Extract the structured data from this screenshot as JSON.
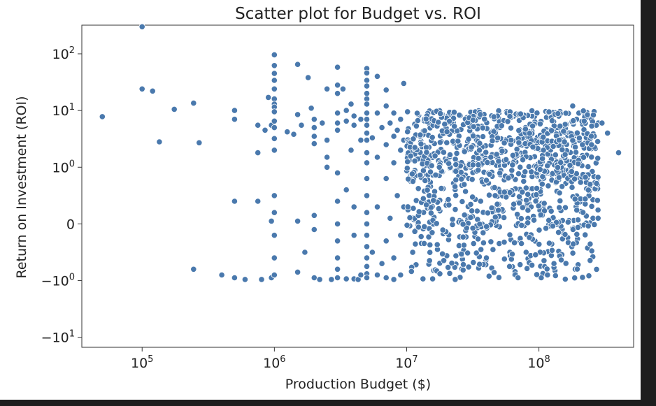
{
  "chart_data": {
    "type": "scatter",
    "title": "Scatter plot for Budget vs. ROI",
    "xlabel": "Production Budget ($)",
    "ylabel": "Return on Investment (ROI)",
    "x_scale": "log",
    "y_scale": "symlog",
    "xlim": [
      35000,
      520000000
    ],
    "ylim": [
      -15,
      320
    ],
    "x_ticks": [
      {
        "value": 100000,
        "base": "10",
        "exp": "5"
      },
      {
        "value": 1000000,
        "base": "10",
        "exp": "6"
      },
      {
        "value": 10000000,
        "base": "10",
        "exp": "7"
      },
      {
        "value": 100000000,
        "base": "10",
        "exp": "8"
      }
    ],
    "y_ticks": [
      {
        "value": 100,
        "base": "10",
        "exp": "2"
      },
      {
        "value": 10,
        "base": "10",
        "exp": "1"
      },
      {
        "value": 1,
        "base": "10",
        "exp": "0"
      },
      {
        "value": 0,
        "base": "0",
        "exp": ""
      },
      {
        "value": -1,
        "base": "−10",
        "exp": "0"
      },
      {
        "value": -10,
        "base": "−10",
        "exp": "1"
      }
    ],
    "grid": false,
    "legend": "none",
    "marker_color": "#4a79ad",
    "series": [
      {
        "points": [
          [
            50000,
            7.8
          ],
          [
            100000,
            300
          ],
          [
            100000,
            24
          ],
          [
            120000,
            22
          ],
          [
            135000,
            2.8
          ],
          [
            175000,
            10.5
          ],
          [
            245000,
            13.5
          ],
          [
            245000,
            -0.8
          ],
          [
            270000,
            2.7
          ],
          [
            400000,
            -0.9
          ],
          [
            500000,
            10
          ],
          [
            500000,
            7
          ],
          [
            500000,
            0.4
          ],
          [
            500000,
            -0.95
          ],
          [
            600000,
            -0.98
          ],
          [
            750000,
            5.5
          ],
          [
            750000,
            1.8
          ],
          [
            750000,
            0.4
          ],
          [
            800000,
            -0.98
          ],
          [
            850000,
            4.5
          ],
          [
            900000,
            17
          ],
          [
            950000,
            5.5
          ],
          [
            950000,
            0.05
          ],
          [
            950000,
            -0.95
          ],
          [
            1000000,
            96
          ],
          [
            1000000,
            62
          ],
          [
            1000000,
            45
          ],
          [
            1000000,
            34
          ],
          [
            1000000,
            24
          ],
          [
            1000000,
            16
          ],
          [
            1000000,
            13
          ],
          [
            1000000,
            11.5
          ],
          [
            1000000,
            9.5
          ],
          [
            1000000,
            6.5
          ],
          [
            1000000,
            5
          ],
          [
            1000000,
            3.2
          ],
          [
            1000000,
            2
          ],
          [
            1000000,
            0.5
          ],
          [
            1000000,
            0.2
          ],
          [
            1000000,
            -0.2
          ],
          [
            1000000,
            -0.6
          ],
          [
            1000000,
            -0.9
          ],
          [
            1250000,
            4.2
          ],
          [
            1400000,
            3.8
          ],
          [
            1500000,
            65
          ],
          [
            1500000,
            8.5
          ],
          [
            1500000,
            0.05
          ],
          [
            1500000,
            -0.85
          ],
          [
            1600000,
            5.5
          ],
          [
            1700000,
            -0.5
          ],
          [
            1800000,
            38
          ],
          [
            1900000,
            11
          ],
          [
            2000000,
            7
          ],
          [
            2000000,
            5
          ],
          [
            2000000,
            3.5
          ],
          [
            2000000,
            2.6
          ],
          [
            2000000,
            0.15
          ],
          [
            2000000,
            -0.1
          ],
          [
            2000000,
            -0.95
          ],
          [
            2200000,
            -0.98
          ],
          [
            2300000,
            6
          ],
          [
            2500000,
            3
          ],
          [
            2500000,
            1.5
          ],
          [
            2500000,
            24
          ],
          [
            2500000,
            1
          ],
          [
            2700000,
            -0.98
          ],
          [
            3000000,
            58
          ],
          [
            3000000,
            28
          ],
          [
            3000000,
            20
          ],
          [
            3000000,
            9
          ],
          [
            3000000,
            6
          ],
          [
            3000000,
            4.5
          ],
          [
            3000000,
            0.9
          ],
          [
            3000000,
            0.4
          ],
          [
            3000000,
            0
          ],
          [
            3000000,
            -0.3
          ],
          [
            3000000,
            -0.6
          ],
          [
            3000000,
            -0.8
          ],
          [
            3000000,
            -0.95
          ],
          [
            3300000,
            24
          ],
          [
            3500000,
            10
          ],
          [
            3500000,
            6.5
          ],
          [
            3500000,
            0.6
          ],
          [
            3500000,
            -0.97
          ],
          [
            3800000,
            2
          ],
          [
            3800000,
            13
          ],
          [
            4000000,
            8
          ],
          [
            4000000,
            5.5
          ],
          [
            4000000,
            0.3
          ],
          [
            4000000,
            -0.2
          ],
          [
            4000000,
            -0.97
          ],
          [
            4300000,
            -0.98
          ],
          [
            4500000,
            3
          ],
          [
            4500000,
            7
          ],
          [
            4500000,
            -0.9
          ],
          [
            5000000,
            55
          ],
          [
            5000000,
            46
          ],
          [
            5000000,
            34
          ],
          [
            5000000,
            27
          ],
          [
            5000000,
            20
          ],
          [
            5000000,
            16
          ],
          [
            5000000,
            13
          ],
          [
            5000000,
            9
          ],
          [
            5000000,
            7
          ],
          [
            5000000,
            5.5
          ],
          [
            5000000,
            4
          ],
          [
            5000000,
            3
          ],
          [
            5000000,
            1.8
          ],
          [
            5000000,
            1.2
          ],
          [
            5000000,
            0.8
          ],
          [
            5000000,
            0.5
          ],
          [
            5000000,
            0.2
          ],
          [
            5000000,
            0
          ],
          [
            5000000,
            -0.2
          ],
          [
            5000000,
            -0.4
          ],
          [
            5000000,
            -0.6
          ],
          [
            5000000,
            -0.75
          ],
          [
            5000000,
            -0.88
          ],
          [
            5000000,
            -0.95
          ],
          [
            5500000,
            3.3
          ],
          [
            5500000,
            -0.5
          ],
          [
            6000000,
            40
          ],
          [
            6000000,
            9
          ],
          [
            6000000,
            1.5
          ],
          [
            6000000,
            0.3
          ],
          [
            6000000,
            -0.9
          ],
          [
            6500000,
            5
          ],
          [
            6500000,
            -0.7
          ],
          [
            7000000,
            23
          ],
          [
            7000000,
            12
          ],
          [
            7000000,
            2.5
          ],
          [
            7000000,
            0.8
          ],
          [
            7000000,
            -0.3
          ],
          [
            7000000,
            -0.95
          ],
          [
            7500000,
            6
          ],
          [
            7500000,
            0.1
          ],
          [
            8000000,
            9
          ],
          [
            8000000,
            3.5
          ],
          [
            8000000,
            1.2
          ],
          [
            8000000,
            -0.6
          ],
          [
            8000000,
            -0.98
          ],
          [
            8500000,
            4.5
          ],
          [
            8500000,
            0.5
          ],
          [
            9000000,
            7
          ],
          [
            9000000,
            2
          ],
          [
            9000000,
            -0.2
          ],
          [
            9000000,
            -0.9
          ],
          [
            9500000,
            30
          ],
          [
            9500000,
            3
          ],
          [
            9500000,
            0.3
          ]
        ]
      }
    ]
  }
}
